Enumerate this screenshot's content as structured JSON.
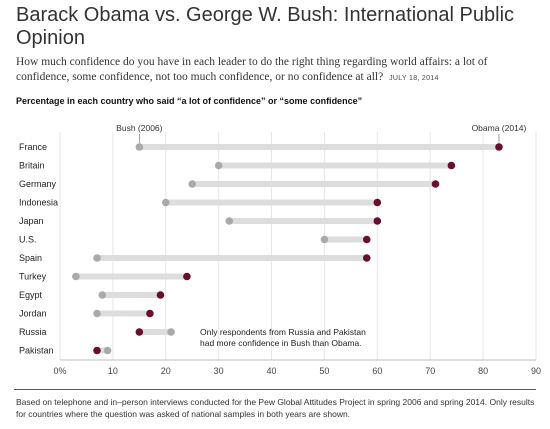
{
  "header": {
    "title": "Barack Obama vs. George W. Bush: International Public Opinion",
    "subtitle": "How much confidence do you have in each leader to do the right thing regarding world affairs: a lot of confidence, some confidence, not too much confidence, or no confidence at all?",
    "dateline": "JULY 18, 2014"
  },
  "chart_heading": "Percentage in each country who said “a lot of confidence” or “some confidence”",
  "chart_data": {
    "type": "scatter",
    "style": "dumbbell",
    "categories": [
      "France",
      "Britain",
      "Germany",
      "Indonesia",
      "Japan",
      "U.S.",
      "Spain",
      "Turkey",
      "Egypt",
      "Jordan",
      "Russia",
      "Pakistan"
    ],
    "series": [
      {
        "name": "Bush (2006)",
        "color": "#aaaaaa",
        "values": [
          15,
          30,
          25,
          20,
          32,
          50,
          7,
          3,
          8,
          7,
          21,
          9
        ]
      },
      {
        "name": "Obama (2014)",
        "color": "#6a0f2a",
        "values": [
          83,
          74,
          71,
          60,
          60,
          58,
          58,
          24,
          19,
          17,
          15,
          7
        ]
      }
    ],
    "x_ticks": [
      0,
      10,
      20,
      30,
      40,
      50,
      60,
      70,
      80,
      90
    ],
    "x_tick_labels": [
      "0%",
      "10",
      "20",
      "30",
      "40",
      "50",
      "60",
      "70",
      "80",
      "90"
    ],
    "xlim": [
      0,
      90
    ],
    "grid": true,
    "annotation": "Only respondents from Russia and Pakistan had more confidence in Bush than Obama."
  },
  "footnote": "Based on telephone and in–person interviews conducted for the Pew Global Attitudes Project in spring 2006 and spring 2014. Only results for countries where the question was asked of national samples in both years are shown.",
  "colors": {
    "bush": "#aaaaaa",
    "obama": "#6a0f2a",
    "connector": "#dddddd",
    "grid": "#e6e6e6"
  }
}
